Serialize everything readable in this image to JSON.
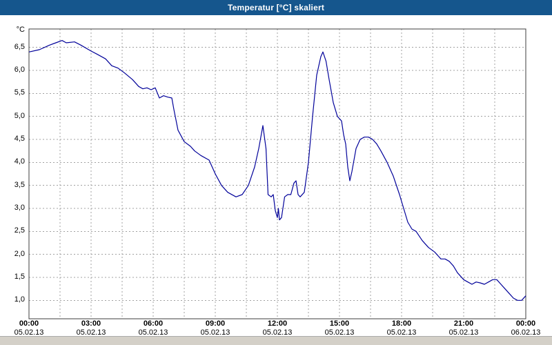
{
  "window": {
    "title": "Temperatur [°C] skaliert",
    "colors": {
      "titlebar": "#15568D",
      "titlebar_text": "#FFFFFF",
      "bottom_strip": "#D4D0C8"
    }
  },
  "chart_data": {
    "type": "line",
    "title": "Temperatur [°C] skaliert",
    "xlabel": "",
    "ylabel": "°C",
    "grid": true,
    "legend": "none",
    "line_color": "#000099",
    "grid_color": "#A0A0A0",
    "frame_color": "#3C3C3C",
    "plot_bg": "#FFFFFF",
    "ylim": [
      0.6,
      6.9
    ],
    "xlim_hours": [
      0,
      24
    ],
    "minor_x_grid_step_hours": 1.5,
    "yticks": [
      {
        "value": 6.5,
        "label": "6,5"
      },
      {
        "value": 6.0,
        "label": "6,0"
      },
      {
        "value": 5.5,
        "label": "5,5"
      },
      {
        "value": 5.0,
        "label": "5,0"
      },
      {
        "value": 4.5,
        "label": "4,5"
      },
      {
        "value": 4.0,
        "label": "4,0"
      },
      {
        "value": 3.5,
        "label": "3,5"
      },
      {
        "value": 3.0,
        "label": "3,0"
      },
      {
        "value": 2.5,
        "label": "2,5"
      },
      {
        "value": 2.0,
        "label": "2,0"
      },
      {
        "value": 1.5,
        "label": "1,5"
      },
      {
        "value": 1.0,
        "label": "1,0"
      }
    ],
    "xticks": [
      {
        "hour": 0,
        "time": "00:00",
        "date": "05.02.13"
      },
      {
        "hour": 3,
        "time": "03:00",
        "date": "05.02.13"
      },
      {
        "hour": 6,
        "time": "06:00",
        "date": "05.02.13"
      },
      {
        "hour": 9,
        "time": "09:00",
        "date": "05.02.13"
      },
      {
        "hour": 12,
        "time": "12:00",
        "date": "05.02.13"
      },
      {
        "hour": 15,
        "time": "15:00",
        "date": "05.02.13"
      },
      {
        "hour": 18,
        "time": "18:00",
        "date": "05.02.13"
      },
      {
        "hour": 21,
        "time": "21:00",
        "date": "05.02.13"
      },
      {
        "hour": 24,
        "time": "00:00",
        "date": "06.02.13"
      }
    ],
    "series": [
      {
        "name": "Temperatur",
        "x_hours": [
          0,
          0.5,
          1,
          1.3,
          1.6,
          1.8,
          2.2,
          2.5,
          3,
          3.3,
          3.7,
          4,
          4.3,
          4.6,
          5,
          5.3,
          5.5,
          5.7,
          5.9,
          6.1,
          6.3,
          6.5,
          6.7,
          6.9,
          7,
          7.2,
          7.5,
          7.8,
          8,
          8.3,
          8.7,
          9,
          9.3,
          9.6,
          10,
          10.3,
          10.6,
          10.9,
          11.1,
          11.3,
          11.45,
          11.55,
          11.7,
          11.8,
          11.9,
          12,
          12.05,
          12.1,
          12.2,
          12.35,
          12.5,
          12.65,
          12.8,
          12.9,
          13,
          13.1,
          13.3,
          13.5,
          13.7,
          13.9,
          14.1,
          14.2,
          14.35,
          14.5,
          14.7,
          14.9,
          15,
          15.1,
          15.2,
          15.3,
          15.4,
          15.5,
          15.6,
          15.8,
          16,
          16.2,
          16.4,
          16.6,
          16.8,
          17,
          17.3,
          17.6,
          17.9,
          18.1,
          18.3,
          18.5,
          18.7,
          19,
          19.3,
          19.6,
          19.9,
          20.1,
          20.3,
          20.5,
          20.7,
          21,
          21.2,
          21.4,
          21.6,
          21.8,
          22,
          22.2,
          22.4,
          22.6,
          22.8,
          23,
          23.2,
          23.4,
          23.6,
          23.8,
          24
        ],
        "y": [
          6.4,
          6.45,
          6.55,
          6.6,
          6.65,
          6.6,
          6.62,
          6.55,
          6.42,
          6.35,
          6.25,
          6.1,
          6.05,
          5.95,
          5.8,
          5.65,
          5.6,
          5.62,
          5.58,
          5.62,
          5.4,
          5.45,
          5.42,
          5.4,
          5.15,
          4.7,
          4.45,
          4.35,
          4.25,
          4.15,
          4.05,
          3.75,
          3.5,
          3.35,
          3.25,
          3.3,
          3.5,
          3.9,
          4.3,
          4.8,
          4.3,
          3.3,
          3.25,
          3.3,
          2.95,
          2.8,
          3.0,
          2.75,
          2.8,
          3.25,
          3.3,
          3.3,
          3.55,
          3.6,
          3.3,
          3.25,
          3.35,
          4.0,
          5.0,
          5.9,
          6.3,
          6.4,
          6.2,
          5.8,
          5.3,
          5.0,
          4.95,
          4.9,
          4.6,
          4.4,
          3.9,
          3.6,
          3.8,
          4.3,
          4.5,
          4.55,
          4.55,
          4.5,
          4.4,
          4.25,
          4.0,
          3.7,
          3.3,
          3.0,
          2.7,
          2.55,
          2.5,
          2.3,
          2.15,
          2.05,
          1.9,
          1.9,
          1.85,
          1.75,
          1.6,
          1.45,
          1.4,
          1.35,
          1.4,
          1.38,
          1.35,
          1.4,
          1.45,
          1.45,
          1.35,
          1.25,
          1.15,
          1.05,
          1.0,
          1.0,
          1.1
        ]
      }
    ]
  }
}
